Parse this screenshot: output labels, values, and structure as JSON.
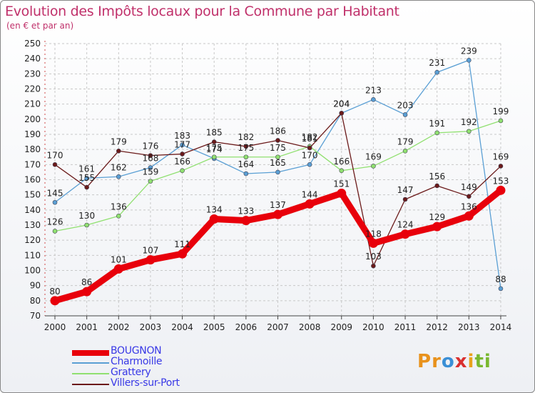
{
  "title": "Evolution des Impôts locaux pour la Commune par Habitant",
  "subtitle": "(en € et par an)",
  "logo": {
    "letters": [
      "P",
      "r",
      "o",
      "x",
      "i",
      "t",
      "i"
    ],
    "colors": [
      "#e8921c",
      "#e8921c",
      "#3a8fd6",
      "#d9302f",
      "#e8a21c",
      "#79b830",
      "#79b830"
    ]
  },
  "chart_data": {
    "type": "line",
    "title": "Evolution des Impôts locaux pour la Commune par Habitant",
    "subtitle": "(en € et par an)",
    "xlabel": "",
    "ylabel": "",
    "ylim": [
      70,
      250
    ],
    "y_ticks": [
      70,
      80,
      90,
      100,
      110,
      120,
      130,
      140,
      150,
      160,
      170,
      180,
      190,
      200,
      210,
      220,
      230,
      240,
      250
    ],
    "grid": true,
    "legend_position": "bottom-left",
    "x": [
      "2000",
      "2001",
      "2002",
      "2003",
      "2004",
      "2005",
      "2006",
      "2007",
      "2008",
      "2009",
      "2010",
      "2011",
      "2012",
      "2013",
      "2014"
    ],
    "series": [
      {
        "name": "BOUGNON",
        "color": "#e8000b",
        "values": [
          80,
          86,
          101,
          107,
          111,
          134,
          133,
          137,
          144,
          151,
          118,
          124,
          129,
          136,
          153
        ]
      },
      {
        "name": "Charmoille",
        "color": "#5a9fd4",
        "values": [
          145,
          161,
          162,
          168,
          183,
          174,
          164,
          165,
          170,
          204,
          213,
          203,
          231,
          239,
          88
        ]
      },
      {
        "name": "Grattery",
        "color": "#90e070",
        "values": [
          126,
          130,
          136,
          159,
          166,
          175,
          175,
          175,
          182,
          166,
          169,
          179,
          191,
          192,
          199
        ]
      },
      {
        "name": "Villers-sur-Port",
        "color": "#6b1a1a",
        "values": [
          170,
          155,
          179,
          176,
          177,
          185,
          182,
          186,
          181,
          204,
          103,
          147,
          156,
          149,
          169
        ]
      }
    ],
    "data_labels": [
      [
        "80",
        "86",
        "101",
        "107",
        "111",
        "134",
        "133",
        "137",
        "144",
        "151",
        "118",
        "124",
        "129",
        "136",
        "153"
      ],
      [
        "145",
        "161",
        "162",
        "168",
        "183",
        "174",
        "164",
        "165",
        "170",
        "204",
        "213",
        "203",
        "231",
        "239",
        "88"
      ],
      [
        "126",
        "130",
        "136",
        "159",
        "166",
        "175",
        "175",
        "175",
        "182",
        "166",
        "169",
        "179",
        "191",
        "192",
        "199"
      ],
      [
        "170",
        "155",
        "179",
        "176",
        "177",
        "185",
        "182",
        "186",
        "181",
        "204",
        "103",
        "147",
        "156",
        "149",
        "169"
      ]
    ]
  }
}
